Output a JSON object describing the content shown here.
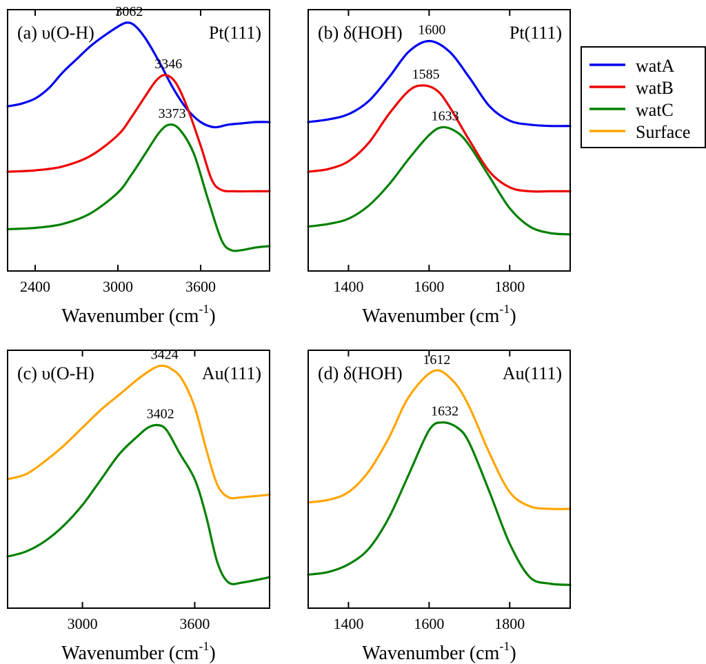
{
  "colors": {
    "watA": "#0000ee",
    "watB": "#ee0000",
    "watC": "#008000",
    "Surface": "#ffa500",
    "axis": "#000000"
  },
  "legend": {
    "placement": "top-right-outside",
    "entries": [
      {
        "label": "watA",
        "color": "#0000ee"
      },
      {
        "label": "watB",
        "color": "#ee0000"
      },
      {
        "label": "watC",
        "color": "#008000"
      },
      {
        "label": "Surface",
        "color": "#ffa500"
      }
    ]
  },
  "chart_data": [
    {
      "id": "a",
      "type": "line",
      "panel_label": "(a) υ(O-H)",
      "surface_label": "Pt(111)",
      "xlabel": "Wavenumber (cm",
      "xlabel_sup": "-1",
      "xlabel_close": ")",
      "xlim": [
        2200,
        4100
      ],
      "ylim": [
        0,
        1
      ],
      "xticks": [
        2400,
        3000,
        3600
      ],
      "tick_labels": [
        "2400",
        "3000",
        "3600"
      ],
      "grid": false,
      "series": [
        {
          "name": "watA",
          "color": "#0000ee",
          "points": [
            [
              2200,
              0.63
            ],
            [
              2300,
              0.64
            ],
            [
              2400,
              0.66
            ],
            [
              2500,
              0.7
            ],
            [
              2600,
              0.76
            ],
            [
              2700,
              0.81
            ],
            [
              2800,
              0.86
            ],
            [
              2900,
              0.9
            ],
            [
              3000,
              0.935
            ],
            [
              3062,
              0.95
            ],
            [
              3120,
              0.94
            ],
            [
              3200,
              0.89
            ],
            [
              3300,
              0.8
            ],
            [
              3400,
              0.7
            ],
            [
              3500,
              0.62
            ],
            [
              3600,
              0.57
            ],
            [
              3700,
              0.55
            ],
            [
              3800,
              0.56
            ],
            [
              3900,
              0.565
            ],
            [
              4000,
              0.57
            ],
            [
              4100,
              0.57
            ]
          ]
        },
        {
          "name": "watB",
          "color": "#ee0000",
          "points": [
            [
              2200,
              0.38
            ],
            [
              2400,
              0.385
            ],
            [
              2600,
              0.4
            ],
            [
              2800,
              0.44
            ],
            [
              3000,
              0.52
            ],
            [
              3100,
              0.59
            ],
            [
              3200,
              0.67
            ],
            [
              3280,
              0.73
            ],
            [
              3346,
              0.75
            ],
            [
              3420,
              0.72
            ],
            [
              3500,
              0.63
            ],
            [
              3600,
              0.48
            ],
            [
              3680,
              0.35
            ],
            [
              3750,
              0.31
            ],
            [
              3850,
              0.305
            ],
            [
              4000,
              0.305
            ],
            [
              4100,
              0.305
            ]
          ]
        },
        {
          "name": "watC",
          "color": "#008000",
          "points": [
            [
              2200,
              0.16
            ],
            [
              2400,
              0.165
            ],
            [
              2600,
              0.18
            ],
            [
              2800,
              0.22
            ],
            [
              3000,
              0.3
            ],
            [
              3100,
              0.37
            ],
            [
              3200,
              0.45
            ],
            [
              3300,
              0.53
            ],
            [
              3373,
              0.56
            ],
            [
              3450,
              0.54
            ],
            [
              3550,
              0.45
            ],
            [
              3650,
              0.28
            ],
            [
              3750,
              0.12
            ],
            [
              3820,
              0.08
            ],
            [
              3900,
              0.08
            ],
            [
              4000,
              0.09
            ],
            [
              4100,
              0.095
            ]
          ]
        }
      ],
      "annotations": [
        {
          "text": "3062",
          "x": 3062,
          "series": "watA"
        },
        {
          "text": "3346",
          "x": 3346,
          "series": "watB"
        },
        {
          "text": "3373",
          "x": 3373,
          "series": "watC"
        }
      ]
    },
    {
      "id": "b",
      "type": "line",
      "panel_label": "(b) δ(HOH)",
      "surface_label": "Pt(111)",
      "xlabel": "Wavenumber (cm",
      "xlabel_sup": "-1",
      "xlabel_close": ")",
      "xlim": [
        1300,
        1950
      ],
      "ylim": [
        0,
        1
      ],
      "xticks": [
        1400,
        1600,
        1800
      ],
      "tick_labels": [
        "1400",
        "1600",
        "1800"
      ],
      "grid": false,
      "series": [
        {
          "name": "watA",
          "color": "#0000ee",
          "points": [
            [
              1300,
              0.57
            ],
            [
              1350,
              0.58
            ],
            [
              1400,
              0.6
            ],
            [
              1450,
              0.65
            ],
            [
              1500,
              0.74
            ],
            [
              1550,
              0.84
            ],
            [
              1600,
              0.88
            ],
            [
              1650,
              0.84
            ],
            [
              1700,
              0.74
            ],
            [
              1750,
              0.63
            ],
            [
              1800,
              0.575
            ],
            [
              1850,
              0.56
            ],
            [
              1900,
              0.555
            ],
            [
              1950,
              0.555
            ]
          ]
        },
        {
          "name": "watB",
          "color": "#ee0000",
          "points": [
            [
              1300,
              0.38
            ],
            [
              1350,
              0.39
            ],
            [
              1400,
              0.42
            ],
            [
              1450,
              0.49
            ],
            [
              1500,
              0.6
            ],
            [
              1550,
              0.69
            ],
            [
              1585,
              0.71
            ],
            [
              1620,
              0.69
            ],
            [
              1650,
              0.63
            ],
            [
              1700,
              0.5
            ],
            [
              1750,
              0.38
            ],
            [
              1800,
              0.32
            ],
            [
              1850,
              0.305
            ],
            [
              1900,
              0.305
            ],
            [
              1950,
              0.305
            ]
          ]
        },
        {
          "name": "watC",
          "color": "#008000",
          "points": [
            [
              1300,
              0.17
            ],
            [
              1350,
              0.18
            ],
            [
              1400,
              0.2
            ],
            [
              1450,
              0.25
            ],
            [
              1500,
              0.33
            ],
            [
              1550,
              0.43
            ],
            [
              1600,
              0.52
            ],
            [
              1633,
              0.55
            ],
            [
              1670,
              0.53
            ],
            [
              1700,
              0.48
            ],
            [
              1750,
              0.36
            ],
            [
              1800,
              0.24
            ],
            [
              1850,
              0.17
            ],
            [
              1900,
              0.145
            ],
            [
              1950,
              0.14
            ]
          ]
        }
      ],
      "annotations": [
        {
          "text": "1600",
          "x": 1600,
          "series": "watA"
        },
        {
          "text": "1585",
          "x": 1585,
          "series": "watB"
        },
        {
          "text": "1633",
          "x": 1633,
          "series": "watC"
        }
      ]
    },
    {
      "id": "c",
      "type": "line",
      "panel_label": "(c) υ(O-H)",
      "surface_label": "Au(111)",
      "xlabel": "Wavenumber (cm",
      "xlabel_sup": "-1",
      "xlabel_close": ")",
      "xlim": [
        2600,
        4000
      ],
      "ylim": [
        0,
        1
      ],
      "xticks": [
        3000,
        3600
      ],
      "tick_labels": [
        "3000",
        "3600"
      ],
      "grid": false,
      "series": [
        {
          "name": "Surface",
          "color": "#ffa500",
          "points": [
            [
              2600,
              0.5
            ],
            [
              2700,
              0.52
            ],
            [
              2800,
              0.57
            ],
            [
              2900,
              0.63
            ],
            [
              3000,
              0.7
            ],
            [
              3100,
              0.77
            ],
            [
              3200,
              0.83
            ],
            [
              3300,
              0.89
            ],
            [
              3380,
              0.93
            ],
            [
              3424,
              0.94
            ],
            [
              3470,
              0.93
            ],
            [
              3530,
              0.89
            ],
            [
              3600,
              0.78
            ],
            [
              3660,
              0.62
            ],
            [
              3720,
              0.48
            ],
            [
              3780,
              0.43
            ],
            [
              3850,
              0.43
            ],
            [
              4000,
              0.44
            ]
          ]
        },
        {
          "name": "watC",
          "color": "#008000",
          "points": [
            [
              2600,
              0.2
            ],
            [
              2700,
              0.22
            ],
            [
              2800,
              0.26
            ],
            [
              2900,
              0.32
            ],
            [
              3000,
              0.4
            ],
            [
              3100,
              0.5
            ],
            [
              3200,
              0.6
            ],
            [
              3300,
              0.67
            ],
            [
              3350,
              0.7
            ],
            [
              3402,
              0.71
            ],
            [
              3450,
              0.69
            ],
            [
              3520,
              0.6
            ],
            [
              3600,
              0.5
            ],
            [
              3660,
              0.36
            ],
            [
              3720,
              0.18
            ],
            [
              3780,
              0.1
            ],
            [
              3860,
              0.1
            ],
            [
              4000,
              0.12
            ]
          ]
        }
      ],
      "annotations": [
        {
          "text": "3424",
          "x": 3424,
          "series": "Surface"
        },
        {
          "text": "3402",
          "x": 3402,
          "series": "watC"
        }
      ]
    },
    {
      "id": "d",
      "type": "line",
      "panel_label": "(d) δ(HOH)",
      "surface_label": "Au(111)",
      "xlabel": "Wavenumber (cm",
      "xlabel_sup": "-1",
      "xlabel_close": ")",
      "xlim": [
        1300,
        1950
      ],
      "ylim": [
        0,
        1
      ],
      "xticks": [
        1400,
        1600,
        1800
      ],
      "tick_labels": [
        "1400",
        "1600",
        "1800"
      ],
      "grid": false,
      "series": [
        {
          "name": "Surface",
          "color": "#ffa500",
          "points": [
            [
              1300,
              0.41
            ],
            [
              1350,
              0.42
            ],
            [
              1400,
              0.45
            ],
            [
              1450,
              0.53
            ],
            [
              1500,
              0.66
            ],
            [
              1550,
              0.82
            ],
            [
              1612,
              0.92
            ],
            [
              1660,
              0.88
            ],
            [
              1700,
              0.78
            ],
            [
              1750,
              0.6
            ],
            [
              1800,
              0.45
            ],
            [
              1850,
              0.395
            ],
            [
              1900,
              0.385
            ],
            [
              1950,
              0.385
            ]
          ]
        },
        {
          "name": "watC",
          "color": "#008000",
          "points": [
            [
              1300,
              0.13
            ],
            [
              1350,
              0.14
            ],
            [
              1400,
              0.17
            ],
            [
              1450,
              0.23
            ],
            [
              1500,
              0.35
            ],
            [
              1550,
              0.52
            ],
            [
              1600,
              0.69
            ],
            [
              1632,
              0.72
            ],
            [
              1670,
              0.7
            ],
            [
              1700,
              0.64
            ],
            [
              1750,
              0.45
            ],
            [
              1800,
              0.25
            ],
            [
              1850,
              0.12
            ],
            [
              1900,
              0.095
            ],
            [
              1950,
              0.09
            ]
          ]
        }
      ],
      "annotations": [
        {
          "text": "1612",
          "x": 1612,
          "series": "Surface"
        },
        {
          "text": "1632",
          "x": 1632,
          "series": "watC"
        }
      ]
    }
  ]
}
